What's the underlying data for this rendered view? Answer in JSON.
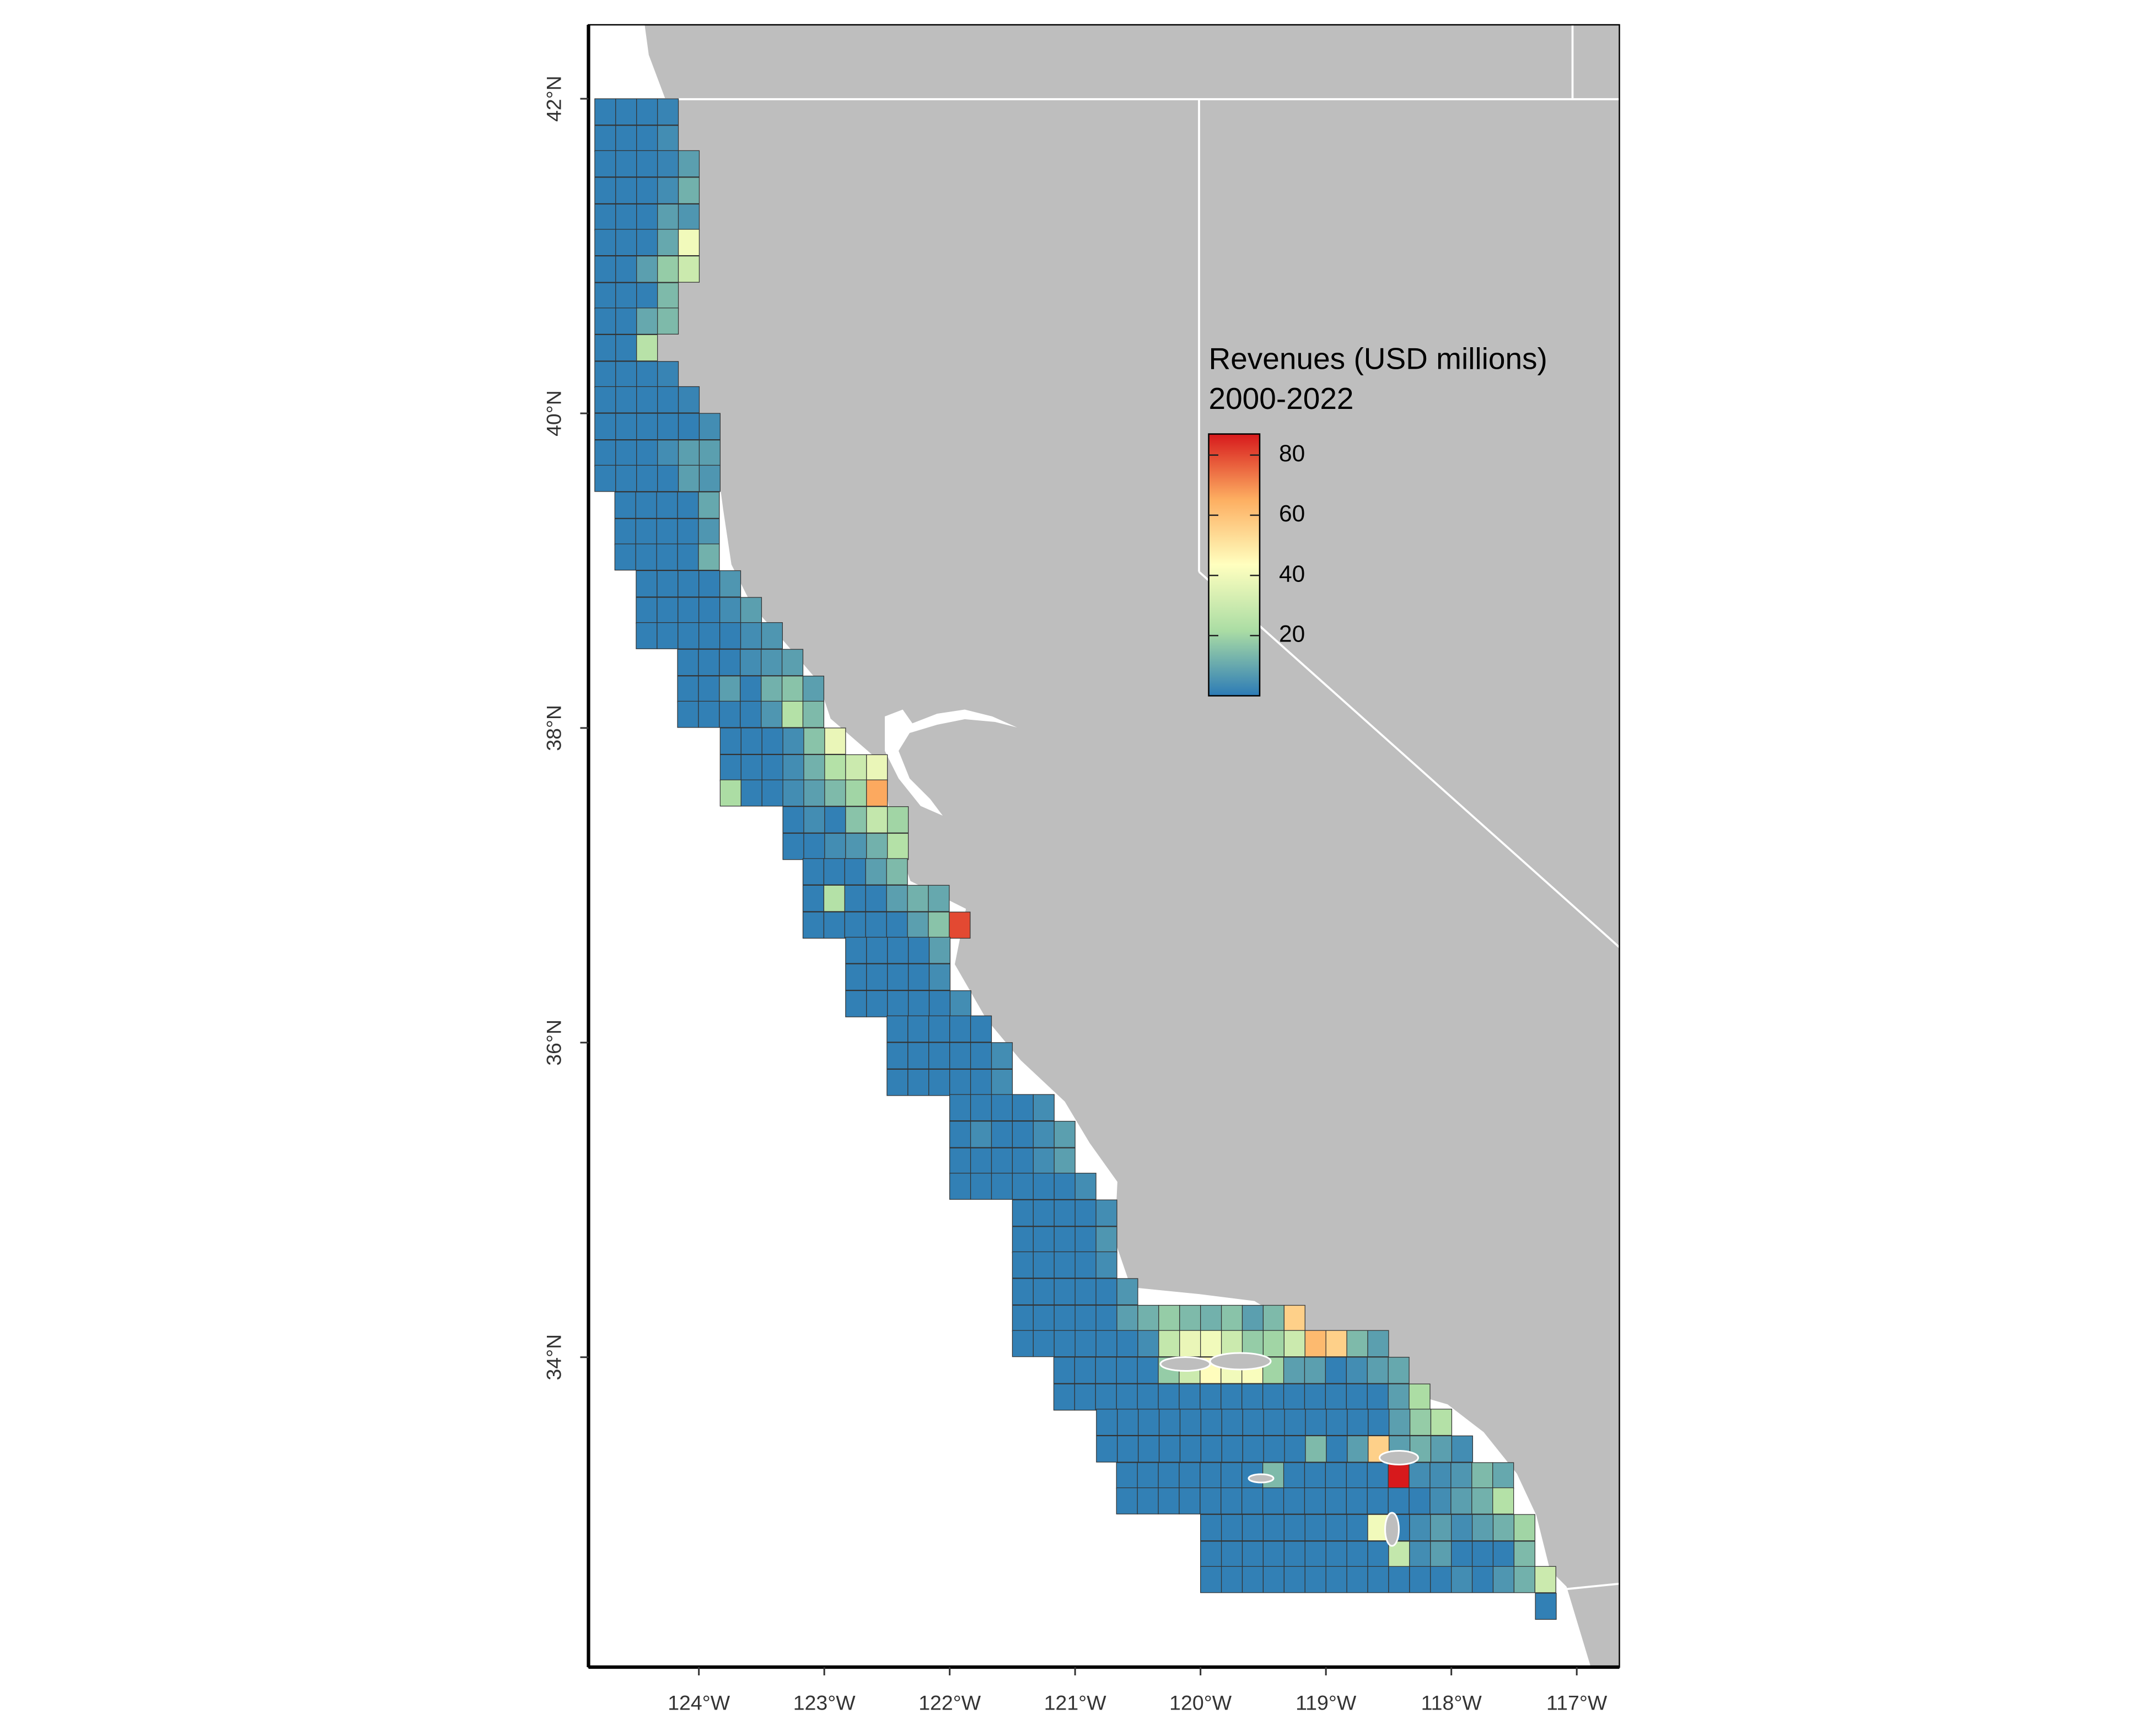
{
  "chart_data": {
    "type": "map",
    "legend_title": [
      "Revenues (USD millions)",
      "2000-2022"
    ],
    "xlim": [
      -124.88,
      -116.66
    ],
    "ylim": [
      32.03,
      42.47
    ],
    "xticks": [
      {
        "value": -124,
        "label": "124°W"
      },
      {
        "value": -123,
        "label": "123°W"
      },
      {
        "value": -122,
        "label": "122°W"
      },
      {
        "value": -121,
        "label": "121°W"
      },
      {
        "value": -120,
        "label": "120°W"
      },
      {
        "value": -119,
        "label": "119°W"
      },
      {
        "value": -118,
        "label": "118°W"
      },
      {
        "value": -117,
        "label": "117°W"
      }
    ],
    "yticks": [
      {
        "value": 34,
        "label": "34°N"
      },
      {
        "value": 36,
        "label": "36°N"
      },
      {
        "value": 38,
        "label": "38°N"
      },
      {
        "value": 40,
        "label": "40°N"
      },
      {
        "value": 42,
        "label": "42°N"
      }
    ],
    "clim": [
      0,
      87
    ],
    "cticks": [
      20,
      40,
      60,
      80
    ],
    "colormap": [
      "#2c7bb6",
      "#abdda4",
      "#ffffbf",
      "#fdae61",
      "#d7191c"
    ],
    "cells": [
      {
        "lat": 42.0,
        "lon": -124.83,
        "values": [
          1,
          1,
          1,
          2
        ]
      },
      {
        "lat": 41.83,
        "lon": -124.83,
        "values": [
          1,
          1,
          1,
          4
        ]
      },
      {
        "lat": 41.67,
        "lon": -124.83,
        "values": [
          1,
          1,
          1,
          2,
          8
        ]
      },
      {
        "lat": 41.5,
        "lon": -124.83,
        "values": [
          1,
          1,
          1,
          4,
          12
        ]
      },
      {
        "lat": 41.33,
        "lon": -124.83,
        "values": [
          1,
          1,
          1,
          8,
          6
        ]
      },
      {
        "lat": 41.17,
        "lon": -124.83,
        "values": [
          1,
          1,
          1,
          10,
          40
        ]
      },
      {
        "lat": 41.0,
        "lon": -124.83,
        "values": [
          1,
          1,
          8,
          18,
          30
        ]
      },
      {
        "lat": 40.83,
        "lon": -124.83,
        "values": [
          1,
          1,
          1,
          14
        ]
      },
      {
        "lat": 40.67,
        "lon": -124.83,
        "values": [
          1,
          1,
          10,
          14
        ]
      },
      {
        "lat": 40.5,
        "lon": -124.83,
        "values": [
          1,
          1,
          25
        ]
      },
      {
        "lat": 40.33,
        "lon": -124.83,
        "values": [
          1,
          1,
          1,
          2
        ]
      },
      {
        "lat": 40.17,
        "lon": -124.83,
        "values": [
          1,
          1,
          1,
          1,
          2
        ]
      },
      {
        "lat": 40.0,
        "lon": -124.83,
        "values": [
          1,
          1,
          1,
          1,
          1,
          4
        ]
      },
      {
        "lat": 39.83,
        "lon": -124.83,
        "values": [
          1,
          1,
          1,
          4,
          8,
          8
        ]
      },
      {
        "lat": 39.67,
        "lon": -124.83,
        "values": [
          1,
          1,
          1,
          1,
          8,
          6
        ]
      },
      {
        "lat": 39.5,
        "lon": -124.67,
        "values": [
          1,
          1,
          1,
          1,
          10
        ]
      },
      {
        "lat": 39.33,
        "lon": -124.67,
        "values": [
          1,
          1,
          1,
          1,
          6
        ]
      },
      {
        "lat": 39.17,
        "lon": -124.67,
        "values": [
          1,
          1,
          1,
          1,
          12
        ]
      },
      {
        "lat": 39.0,
        "lon": -124.5,
        "values": [
          1,
          1,
          1,
          1,
          6
        ]
      },
      {
        "lat": 38.83,
        "lon": -124.5,
        "values": [
          1,
          1,
          1,
          1,
          4,
          8
        ]
      },
      {
        "lat": 38.67,
        "lon": -124.5,
        "values": [
          1,
          1,
          1,
          1,
          1,
          4,
          6
        ]
      },
      {
        "lat": 38.5,
        "lon": -124.17,
        "values": [
          1,
          1,
          1,
          4,
          6,
          8
        ]
      },
      {
        "lat": 38.33,
        "lon": -124.17,
        "values": [
          1,
          1,
          8,
          1,
          12,
          16,
          8
        ]
      },
      {
        "lat": 38.17,
        "lon": -124.17,
        "values": [
          1,
          1,
          1,
          1,
          6,
          24,
          14
        ]
      },
      {
        "lat": 38.0,
        "lon": -123.83,
        "values": [
          1,
          1,
          1,
          4,
          16,
          38
        ]
      },
      {
        "lat": 37.83,
        "lon": -123.83,
        "values": [
          1,
          1,
          1,
          4,
          12,
          24,
          30,
          38
        ]
      },
      {
        "lat": 37.67,
        "lon": -123.83,
        "values": [
          22,
          1,
          1,
          4,
          8,
          14,
          20,
          66
        ]
      },
      {
        "lat": 37.5,
        "lon": -123.33,
        "values": [
          1,
          4,
          1,
          16,
          28,
          20
        ]
      },
      {
        "lat": 37.33,
        "lon": -123.33,
        "values": [
          1,
          1,
          4,
          6,
          12,
          24
        ]
      },
      {
        "lat": 37.17,
        "lon": -123.17,
        "values": [
          1,
          1,
          1,
          8,
          14
        ]
      },
      {
        "lat": 37.0,
        "lon": -123.17,
        "values": [
          1,
          24,
          1,
          1,
          8,
          12,
          10
        ]
      },
      {
        "lat": 36.83,
        "lon": -123.17,
        "values": [
          1,
          1,
          1,
          1,
          1,
          8,
          16,
          80
        ]
      },
      {
        "lat": 36.67,
        "lon": -122.83,
        "values": [
          1,
          1,
          1,
          1,
          8
        ]
      },
      {
        "lat": 36.5,
        "lon": -122.83,
        "values": [
          1,
          1,
          1,
          1,
          4
        ]
      },
      {
        "lat": 36.33,
        "lon": -122.83,
        "values": [
          1,
          1,
          1,
          1,
          1,
          4
        ]
      },
      {
        "lat": 36.17,
        "lon": -122.5,
        "values": [
          1,
          1,
          1,
          1,
          1
        ]
      },
      {
        "lat": 36.0,
        "lon": -122.5,
        "values": [
          1,
          1,
          1,
          1,
          1,
          4
        ]
      },
      {
        "lat": 35.83,
        "lon": -122.5,
        "values": [
          1,
          1,
          1,
          1,
          1,
          4
        ]
      },
      {
        "lat": 35.67,
        "lon": -122.0,
        "values": [
          1,
          1,
          1,
          1,
          4
        ]
      },
      {
        "lat": 35.5,
        "lon": -122.0,
        "values": [
          1,
          4,
          1,
          1,
          4,
          8
        ]
      },
      {
        "lat": 35.33,
        "lon": -122.0,
        "values": [
          1,
          1,
          1,
          1,
          4,
          8
        ]
      },
      {
        "lat": 35.17,
        "lon": -122.0,
        "values": [
          1,
          1,
          1,
          1,
          1,
          1,
          4
        ]
      },
      {
        "lat": 35.0,
        "lon": -121.5,
        "values": [
          1,
          1,
          1,
          1,
          4
        ]
      },
      {
        "lat": 34.83,
        "lon": -121.5,
        "values": [
          1,
          1,
          1,
          1,
          6
        ]
      },
      {
        "lat": 34.67,
        "lon": -121.5,
        "values": [
          1,
          1,
          1,
          1,
          4
        ]
      },
      {
        "lat": 34.5,
        "lon": -121.5,
        "values": [
          1,
          1,
          1,
          1,
          1,
          6
        ]
      },
      {
        "lat": 34.33,
        "lon": -121.5,
        "values": [
          1,
          1,
          1,
          1,
          1,
          8,
          12,
          18,
          14,
          12,
          16,
          8,
          14,
          56
        ]
      },
      {
        "lat": 34.17,
        "lon": -121.5,
        "values": [
          1,
          1,
          1,
          1,
          1,
          1,
          4,
          28,
          38,
          40,
          30,
          18,
          20,
          30,
          62,
          56,
          14,
          8
        ]
      },
      {
        "lat": 34.0,
        "lon": -121.17,
        "values": [
          1,
          1,
          1,
          1,
          1,
          18,
          30,
          44,
          40,
          42,
          20,
          8,
          8,
          1,
          4,
          8,
          10
        ]
      },
      {
        "lat": 33.83,
        "lon": -121.17,
        "values": [
          1,
          1,
          1,
          1,
          1,
          1,
          1,
          1,
          1,
          1,
          1,
          1,
          1,
          1,
          1,
          1,
          8,
          22
        ]
      },
      {
        "lat": 33.67,
        "lon": -120.83,
        "values": [
          1,
          1,
          1,
          1,
          1,
          1,
          1,
          1,
          1,
          1,
          1,
          1,
          1,
          1,
          8,
          18,
          24
        ]
      },
      {
        "lat": 33.5,
        "lon": -120.83,
        "values": [
          1,
          1,
          1,
          1,
          1,
          1,
          1,
          1,
          1,
          1,
          14,
          1,
          8,
          56,
          8,
          12,
          8,
          4
        ]
      },
      {
        "lat": 33.33,
        "lon": -120.67,
        "values": [
          1,
          1,
          1,
          1,
          1,
          1,
          1,
          14,
          1,
          1,
          1,
          1,
          1,
          88,
          4,
          4,
          6,
          14,
          10
        ]
      },
      {
        "lat": 33.17,
        "lon": -120.67,
        "values": [
          1,
          1,
          1,
          1,
          1,
          1,
          1,
          1,
          1,
          1,
          1,
          1,
          1,
          1,
          1,
          4,
          8,
          12,
          24
        ]
      },
      {
        "lat": 33.0,
        "lon": -120.0,
        "values": [
          1,
          1,
          1,
          1,
          1,
          1,
          1,
          1,
          40,
          1,
          4,
          8,
          4,
          8,
          12,
          20
        ]
      },
      {
        "lat": 32.83,
        "lon": -120.0,
        "values": [
          1,
          1,
          1,
          1,
          1,
          1,
          1,
          1,
          1,
          28,
          4,
          8,
          1,
          1,
          1,
          14
        ]
      },
      {
        "lat": 32.67,
        "lon": -120.0,
        "values": [
          1,
          1,
          1,
          1,
          1,
          1,
          1,
          1,
          1,
          1,
          1,
          1,
          4,
          1,
          6,
          12,
          30
        ]
      },
      {
        "lat": 32.5,
        "lon": -117.33,
        "values": [
          1
        ]
      }
    ]
  }
}
